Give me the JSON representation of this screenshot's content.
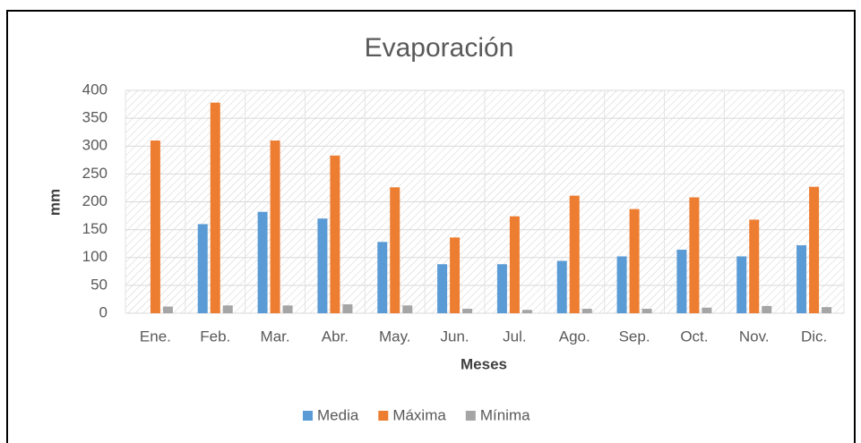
{
  "chart_data": {
    "type": "bar",
    "title": "Evaporación",
    "x_label": "Meses",
    "y_label": "mm",
    "categories": [
      "Ene.",
      "Feb.",
      "Mar.",
      "Abr.",
      "May.",
      "Jun.",
      "Jul.",
      "Ago.",
      "Sep.",
      "Oct.",
      "Nov.",
      "Dic."
    ],
    "series": [
      {
        "name": "Media",
        "color": "#5b9bd5",
        "values": [
          null,
          160,
          182,
          170,
          128,
          88,
          88,
          94,
          102,
          114,
          102,
          122
        ]
      },
      {
        "name": "Máxima",
        "color": "#ed7d31",
        "values": [
          310,
          378,
          310,
          283,
          226,
          136,
          174,
          211,
          187,
          208,
          168,
          227
        ]
      },
      {
        "name": "Mínima",
        "color": "#a5a5a5",
        "values": [
          12,
          14,
          14,
          16,
          14,
          8,
          6,
          8,
          8,
          10,
          13,
          11
        ]
      }
    ],
    "ylim": [
      0,
      400
    ],
    "yticks": [
      0,
      50,
      100,
      150,
      200,
      250,
      300,
      350,
      400
    ],
    "grid": true,
    "legend": "bottom"
  }
}
